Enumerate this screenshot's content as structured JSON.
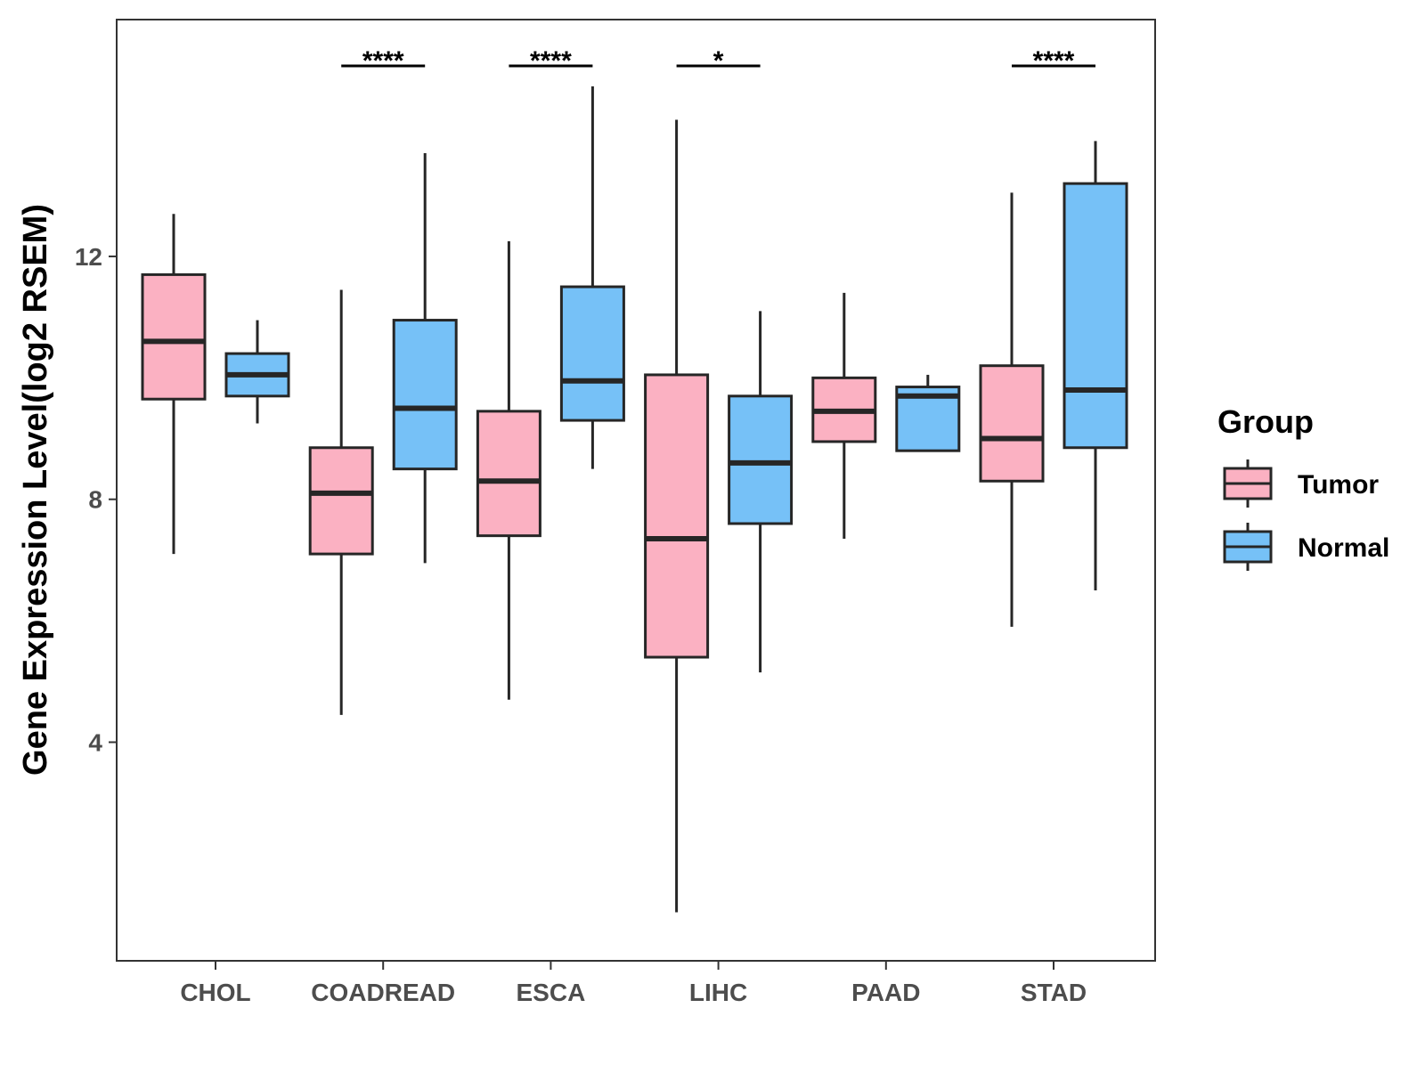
{
  "chart_data": {
    "type": "boxplot",
    "title": "",
    "xlabel": "",
    "ylabel": "Gene Expression Level(log2 RSEM)",
    "ylim": [
      0.4,
      15.9
    ],
    "yticks": [
      4,
      8,
      12
    ],
    "categories": [
      "CHOL",
      "COADREAD",
      "ESCA",
      "LIHC",
      "PAAD",
      "STAD"
    ],
    "legend": {
      "title": "Group",
      "position": "right"
    },
    "series": [
      {
        "name": "Tumor",
        "color": "#fbb1c2",
        "boxes": [
          {
            "category": "CHOL",
            "min": 7.1,
            "q1": 9.65,
            "median": 10.6,
            "q3": 11.7,
            "max": 12.7
          },
          {
            "category": "COADREAD",
            "min": 4.45,
            "q1": 7.1,
            "median": 8.1,
            "q3": 8.85,
            "max": 11.45
          },
          {
            "category": "ESCA",
            "min": 4.7,
            "q1": 7.4,
            "median": 8.3,
            "q3": 9.45,
            "max": 12.25
          },
          {
            "category": "LIHC",
            "min": 1.2,
            "q1": 5.4,
            "median": 7.35,
            "q3": 10.05,
            "max": 14.25
          },
          {
            "category": "PAAD",
            "min": 7.35,
            "q1": 8.95,
            "median": 9.45,
            "q3": 10.0,
            "max": 11.4
          },
          {
            "category": "STAD",
            "min": 5.9,
            "q1": 8.3,
            "median": 9.0,
            "q3": 10.2,
            "max": 13.05
          }
        ]
      },
      {
        "name": "Normal",
        "color": "#76c1f7",
        "boxes": [
          {
            "category": "CHOL",
            "min": 9.25,
            "q1": 9.7,
            "median": 10.05,
            "q3": 10.4,
            "max": 10.95
          },
          {
            "category": "COADREAD",
            "min": 6.95,
            "q1": 8.5,
            "median": 9.5,
            "q3": 10.95,
            "max": 13.7
          },
          {
            "category": "ESCA",
            "min": 8.5,
            "q1": 9.3,
            "median": 9.95,
            "q3": 11.5,
            "max": 14.8
          },
          {
            "category": "LIHC",
            "min": 5.15,
            "q1": 7.6,
            "median": 8.6,
            "q3": 9.7,
            "max": 11.1
          },
          {
            "category": "PAAD",
            "min": 8.8,
            "q1": 8.8,
            "median": 9.7,
            "q3": 9.85,
            "max": 10.05
          },
          {
            "category": "STAD",
            "min": 6.5,
            "q1": 8.85,
            "median": 9.8,
            "q3": 13.2,
            "max": 13.9
          }
        ]
      }
    ],
    "significance": [
      {
        "category": "CHOL",
        "label": ""
      },
      {
        "category": "COADREAD",
        "label": "****"
      },
      {
        "category": "ESCA",
        "label": "****"
      },
      {
        "category": "LIHC",
        "label": "*"
      },
      {
        "category": "PAAD",
        "label": ""
      },
      {
        "category": "STAD",
        "label": "****"
      }
    ]
  }
}
